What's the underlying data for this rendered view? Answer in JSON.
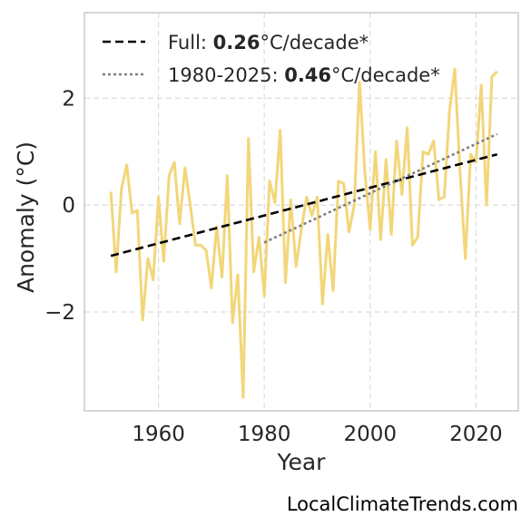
{
  "chart_data": {
    "type": "line",
    "xlabel": "Year",
    "ylabel": "Anomaly (°C)",
    "xlim": [
      1946,
      2028
    ],
    "ylim": [
      -3.85,
      3.6
    ],
    "xticks": [
      1960,
      1980,
      2000,
      2020
    ],
    "yticks": [
      -2,
      0,
      2
    ],
    "ytick_labels": [
      "−2",
      "0",
      "2"
    ],
    "grid": true,
    "legend_position": "top-left",
    "series": [
      {
        "name": "Anomaly",
        "color": "#f2d67a",
        "style": "solid",
        "x": [
          1951,
          1952,
          1953,
          1954,
          1955,
          1956,
          1957,
          1958,
          1959,
          1960,
          1961,
          1962,
          1963,
          1964,
          1965,
          1966,
          1967,
          1968,
          1969,
          1970,
          1971,
          1972,
          1973,
          1974,
          1975,
          1976,
          1977,
          1978,
          1979,
          1980,
          1981,
          1982,
          1983,
          1984,
          1985,
          1986,
          1987,
          1988,
          1989,
          1990,
          1991,
          1992,
          1993,
          1994,
          1995,
          1996,
          1997,
          1998,
          1999,
          2000,
          2001,
          2002,
          2003,
          2004,
          2005,
          2006,
          2007,
          2008,
          2009,
          2010,
          2011,
          2012,
          2013,
          2014,
          2015,
          2016,
          2017,
          2018,
          2019,
          2020,
          2021,
          2022,
          2023,
          2024
        ],
        "y": [
          0.25,
          -1.25,
          0.3,
          0.75,
          -0.15,
          -0.1,
          -2.15,
          -1.0,
          -1.4,
          0.15,
          -1.05,
          0.55,
          0.8,
          -0.35,
          0.7,
          0.0,
          -0.75,
          -0.75,
          -0.85,
          -1.55,
          -0.4,
          -1.35,
          0.55,
          -2.2,
          -1.3,
          -3.6,
          1.25,
          -1.25,
          -0.6,
          -1.7,
          0.45,
          0.05,
          1.4,
          -1.45,
          0.1,
          -1.15,
          -0.45,
          0.15,
          -0.2,
          0.15,
          -1.85,
          -0.55,
          -1.6,
          0.45,
          0.4,
          -0.5,
          0.0,
          2.3,
          0.6,
          -0.45,
          1.0,
          -0.65,
          0.85,
          -0.55,
          1.2,
          0.2,
          1.45,
          -0.75,
          -0.6,
          1.0,
          0.95,
          1.2,
          0.1,
          0.15,
          1.75,
          2.55,
          0.6,
          -1.0,
          0.95,
          0.8,
          2.25,
          0.0,
          2.4,
          2.5
        ]
      },
      {
        "name": "Full",
        "color": "#000000",
        "style": "dashed",
        "x": [
          1951,
          2024
        ],
        "y": [
          -0.95,
          0.95
        ]
      },
      {
        "name": "1980-2025",
        "color": "#808080",
        "style": "dotted",
        "x": [
          1980,
          2024
        ],
        "y": [
          -0.7,
          1.33
        ]
      }
    ],
    "legend": [
      {
        "series": "Full",
        "prefix": "Full: ",
        "value": "0.26",
        "suffix": "°C/decade*"
      },
      {
        "series": "1980-2025",
        "prefix": "1980-2025: ",
        "value": "0.46",
        "suffix": "°C/decade*"
      }
    ]
  },
  "source": "LocalClimateTrends.com"
}
